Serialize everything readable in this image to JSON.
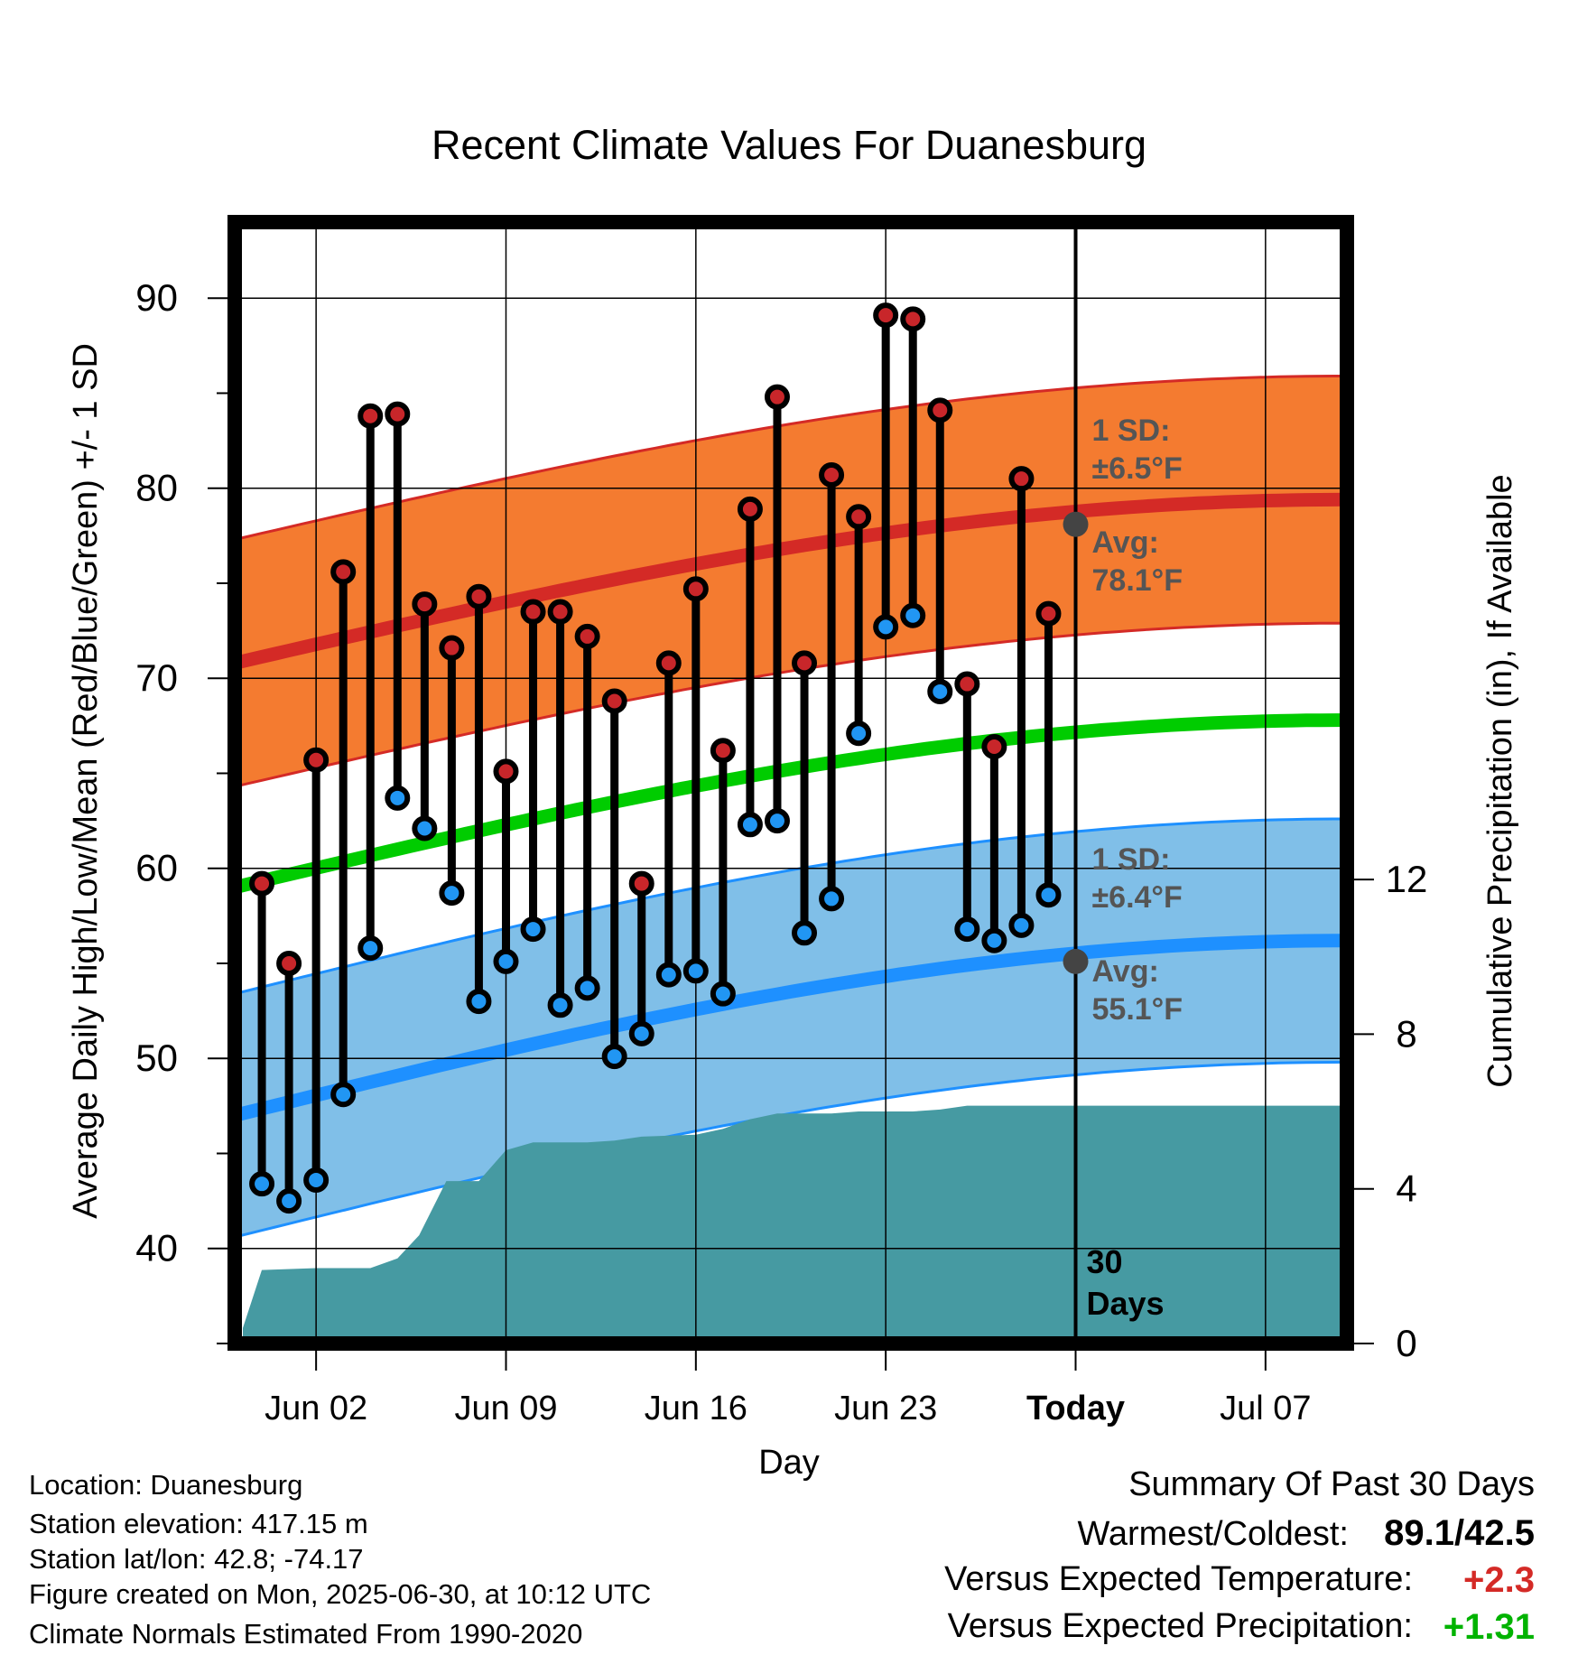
{
  "chart_data": {
    "type": "line",
    "title": "Recent Climate Values For Duanesburg",
    "xlabel": "Day",
    "ylabel_left": "Average Daily High/Low/Mean (Red/Blue/Green) +/- 1 SD",
    "ylabel_right": "Cumulative Precipitation (in), If Available",
    "x_range_day": [
      -1,
      40
    ],
    "left_ylim": [
      35,
      94
    ],
    "right_ylim": [
      0,
      29
    ],
    "x_ticks": [
      {
        "day": 2,
        "label": "Jun 02"
      },
      {
        "day": 9,
        "label": "Jun 09"
      },
      {
        "day": 16,
        "label": "Jun 16"
      },
      {
        "day": 23,
        "label": "Jun 23"
      },
      {
        "day": 30,
        "label": "Today"
      },
      {
        "day": 37,
        "label": "Jul 07"
      }
    ],
    "left_y_ticks": [
      40,
      50,
      60,
      70,
      80,
      90
    ],
    "right_y_ticks": [
      0,
      4,
      8,
      12
    ],
    "today_day": 30,
    "today_label": [
      "30",
      "Days"
    ],
    "normals": {
      "high_mean": {
        "start": 70.8,
        "end": 79.4
      },
      "high_sd": 6.5,
      "mean": {
        "start": 59.0,
        "end": 67.8
      },
      "low_mean": {
        "start": 47.0,
        "end": 56.2
      },
      "low_sd": 6.4
    },
    "annotations": {
      "high_sd_label": [
        "1 SD:",
        "±6.5°F"
      ],
      "high_avg_label": [
        "Avg:",
        "78.1°F"
      ],
      "low_sd_label": [
        "1 SD:",
        "±6.4°F"
      ],
      "low_avg_label": [
        "Avg:",
        "55.1°F"
      ],
      "high_avg_value": 78.1,
      "low_avg_value": 55.1
    },
    "daily": [
      {
        "day": 0,
        "high": 59.2,
        "low": 43.4
      },
      {
        "day": 1,
        "high": 55.0,
        "low": 42.5
      },
      {
        "day": 2,
        "high": 65.7,
        "low": 43.6
      },
      {
        "day": 3,
        "high": 75.6,
        "low": 48.1
      },
      {
        "day": 4,
        "high": 83.8,
        "low": 55.8
      },
      {
        "day": 5,
        "high": 83.9,
        "low": 63.7
      },
      {
        "day": 6,
        "high": 73.9,
        "low": 62.1
      },
      {
        "day": 7,
        "high": 71.6,
        "low": 58.7
      },
      {
        "day": 8,
        "high": 74.3,
        "low": 53.0
      },
      {
        "day": 9,
        "high": 65.1,
        "low": 55.1
      },
      {
        "day": 10,
        "high": 73.5,
        "low": 56.8
      },
      {
        "day": 11,
        "high": 73.5,
        "low": 52.8
      },
      {
        "day": 12,
        "high": 72.2,
        "low": 53.7
      },
      {
        "day": 13,
        "high": 68.8,
        "low": 50.1
      },
      {
        "day": 14,
        "high": 59.2,
        "low": 51.3
      },
      {
        "day": 15,
        "high": 70.8,
        "low": 54.4
      },
      {
        "day": 16,
        "high": 74.7,
        "low": 54.6
      },
      {
        "day": 17,
        "high": 66.2,
        "low": 53.4
      },
      {
        "day": 18,
        "high": 78.9,
        "low": 62.3
      },
      {
        "day": 19,
        "high": 84.8,
        "low": 62.5
      },
      {
        "day": 20,
        "high": 70.8,
        "low": 56.6
      },
      {
        "day": 21,
        "high": 80.7,
        "low": 58.4
      },
      {
        "day": 22,
        "high": 78.5,
        "low": 67.1
      },
      {
        "day": 23,
        "high": 89.1,
        "low": 72.7
      },
      {
        "day": 24,
        "high": 88.9,
        "low": 73.3
      },
      {
        "day": 25,
        "high": 84.1,
        "low": 69.3
      },
      {
        "day": 26,
        "high": 69.7,
        "low": 56.8
      },
      {
        "day": 27,
        "high": 66.4,
        "low": 56.2
      },
      {
        "day": 28,
        "high": 80.5,
        "low": 57.0
      },
      {
        "day": 29,
        "high": 73.4,
        "low": 58.6
      }
    ],
    "precip_cumulative": [
      {
        "day": -0.7,
        "value": 0.4
      },
      {
        "day": 0,
        "value": 1.9
      },
      {
        "day": 2,
        "value": 1.95
      },
      {
        "day": 4,
        "value": 1.95
      },
      {
        "day": 5,
        "value": 2.2
      },
      {
        "day": 5.8,
        "value": 2.8
      },
      {
        "day": 6.8,
        "value": 4.2
      },
      {
        "day": 8,
        "value": 4.2
      },
      {
        "day": 9,
        "value": 5.0
      },
      {
        "day": 10,
        "value": 5.2
      },
      {
        "day": 12,
        "value": 5.2
      },
      {
        "day": 13,
        "value": 5.25
      },
      {
        "day": 14,
        "value": 5.35
      },
      {
        "day": 16,
        "value": 5.4
      },
      {
        "day": 17,
        "value": 5.55
      },
      {
        "day": 18,
        "value": 5.8
      },
      {
        "day": 19,
        "value": 5.95
      },
      {
        "day": 21,
        "value": 5.95
      },
      {
        "day": 22,
        "value": 6.0
      },
      {
        "day": 24,
        "value": 6.0
      },
      {
        "day": 25,
        "value": 6.05
      },
      {
        "day": 26,
        "value": 6.15
      },
      {
        "day": 40,
        "value": 6.15
      }
    ]
  },
  "footer": {
    "location": "Location: Duanesburg",
    "elevation": "Station elevation: 417.15 m",
    "latlon": "Station lat/lon: 42.8; -74.17",
    "created": "Figure created on Mon, 2025-06-30, at 10:12 UTC",
    "normals": "Climate Normals Estimated From 1990-2020"
  },
  "summary": {
    "heading": "Summary Of Past 30 Days",
    "warmest_label": "Warmest/Coldest:",
    "warmest_value": "89.1",
    "slash": "/",
    "coldest_value": "42.5",
    "temp_label": "Versus Expected Temperature:",
    "temp_value": "+2.3",
    "precip_label": "Versus Expected Precipitation:",
    "precip_value": "+1.31"
  },
  "colors": {
    "high_band": "#f47b30",
    "high_line": "#d42a26",
    "mean_line": "#00cc00",
    "low_band": "#80bfe8",
    "low_line": "#1e90ff",
    "precip": "#469aa2",
    "high_dot": "#c8262a",
    "low_dot": "#2196f3",
    "avg_marker": "#444444",
    "annotation": "#555555",
    "temp_positive": "#d42a26",
    "precip_positive": "#00b300"
  }
}
